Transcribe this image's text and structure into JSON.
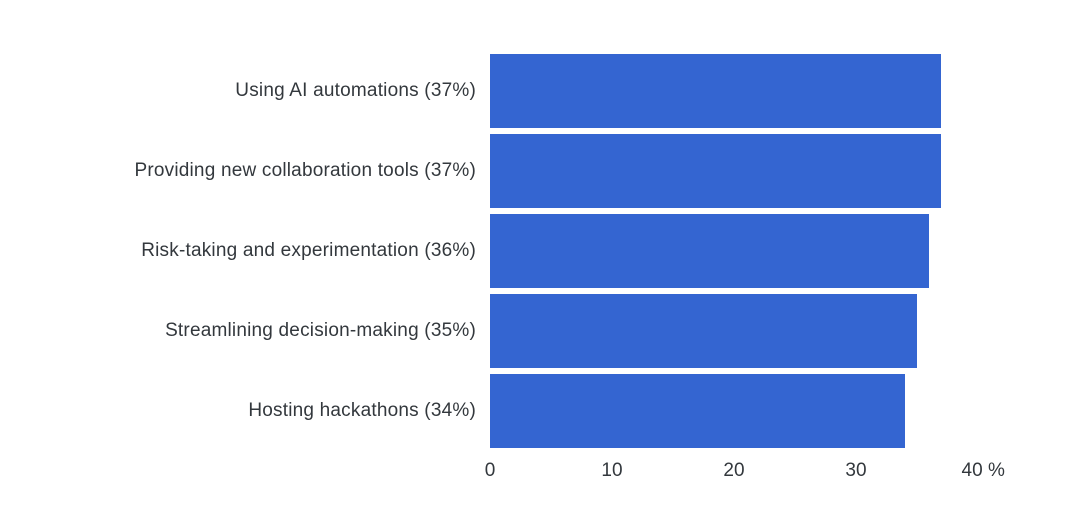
{
  "chart_data": {
    "type": "bar",
    "orientation": "horizontal",
    "title": "",
    "xlabel": "",
    "ylabel": "",
    "categories": [
      "Using AI automations (37%)",
      "Providing new collaboration tools (37%)",
      "Risk-taking and experimentation (36%)",
      "Streamlining decision-making (35%)",
      "Hosting hackathons (34%)"
    ],
    "values": [
      37,
      37,
      36,
      35,
      34
    ],
    "unit": "%",
    "xlim": [
      0,
      40
    ],
    "xmax": 40,
    "x_ticks": [
      {
        "value": 0,
        "label": "0"
      },
      {
        "value": 10,
        "label": "10"
      },
      {
        "value": 20,
        "label": "20"
      },
      {
        "value": 30,
        "label": "30"
      },
      {
        "value": 40,
        "label": "40 %"
      }
    ],
    "bar_color": "#3465d1",
    "background_color": "#ffffff",
    "grid": false,
    "legend": false
  }
}
